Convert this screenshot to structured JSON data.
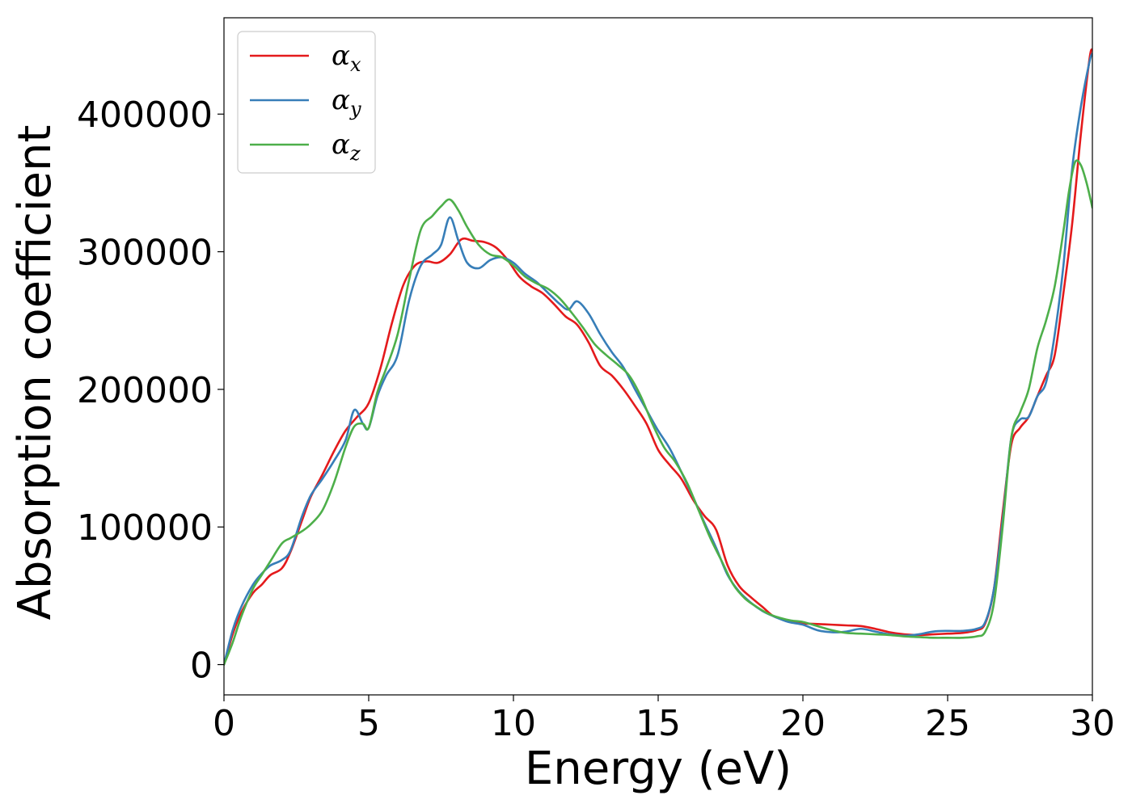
{
  "chart_data": {
    "type": "line",
    "title": "",
    "xlabel": "Energy (eV)",
    "ylabel": "Absorption coefficient",
    "xlim": [
      0,
      30
    ],
    "ylim": [
      -22000,
      470000
    ],
    "xticks": [
      0,
      5,
      10,
      15,
      20,
      25,
      30
    ],
    "yticks": [
      0,
      100000,
      200000,
      300000,
      400000
    ],
    "xtick_labels": [
      "0",
      "5",
      "10",
      "15",
      "20",
      "25",
      "30"
    ],
    "ytick_labels": [
      "0",
      "100000",
      "200000",
      "300000",
      "400000"
    ],
    "grid": false,
    "legend_position": "top-left",
    "series": [
      {
        "name": "α_x",
        "label_base": "α",
        "label_sub": "x",
        "color": "#e41a1c",
        "x": [
          0,
          0.3,
          0.6,
          1.0,
          1.3,
          1.6,
          2.0,
          2.3,
          2.7,
          3.0,
          3.4,
          3.8,
          4.2,
          4.6,
          5.0,
          5.4,
          5.8,
          6.2,
          6.6,
          7.0,
          7.4,
          7.8,
          8.2,
          8.6,
          9.0,
          9.4,
          9.8,
          10.2,
          10.6,
          11.0,
          11.4,
          11.8,
          12.2,
          12.6,
          13.0,
          13.4,
          13.8,
          14.2,
          14.6,
          15.0,
          15.4,
          15.8,
          16.2,
          16.6,
          17.0,
          17.4,
          17.8,
          18.2,
          18.6,
          19.0,
          19.5,
          20.0,
          20.5,
          21.0,
          21.5,
          22.0,
          22.5,
          23.0,
          23.5,
          24.0,
          24.5,
          25.0,
          25.5,
          26.0,
          26.3,
          26.6,
          26.9,
          27.2,
          27.5,
          27.8,
          28.1,
          28.4,
          28.7,
          29.0,
          29.3,
          29.6,
          29.9,
          30.0
        ],
        "y": [
          0,
          22000,
          38000,
          52000,
          58000,
          65000,
          70000,
          82000,
          105000,
          122000,
          138000,
          155000,
          170000,
          180000,
          190000,
          215000,
          248000,
          276000,
          290000,
          293000,
          292000,
          298000,
          309000,
          308000,
          307000,
          303000,
          294000,
          282000,
          275000,
          270000,
          262000,
          253000,
          247000,
          234000,
          217000,
          210000,
          200000,
          188000,
          175000,
          156000,
          145000,
          135000,
          120000,
          108000,
          98000,
          72000,
          57000,
          49000,
          42000,
          35000,
          32000,
          30000,
          29500,
          29000,
          28500,
          28000,
          26000,
          23500,
          22000,
          21500,
          22000,
          22500,
          23000,
          25000,
          30000,
          55000,
          110000,
          160000,
          172000,
          180000,
          195000,
          210000,
          225000,
          270000,
          320000,
          385000,
          440000,
          447000
        ]
      },
      {
        "name": "α_y",
        "label_base": "α",
        "label_sub": "y",
        "color": "#377eb8",
        "x": [
          0,
          0.3,
          0.6,
          1.0,
          1.3,
          1.6,
          2.0,
          2.3,
          2.7,
          3.0,
          3.4,
          3.8,
          4.2,
          4.5,
          4.8,
          5.0,
          5.3,
          5.6,
          6.0,
          6.4,
          6.8,
          7.2,
          7.5,
          7.8,
          8.1,
          8.4,
          8.8,
          9.2,
          9.6,
          10.0,
          10.4,
          10.8,
          11.2,
          11.6,
          11.9,
          12.2,
          12.6,
          13.0,
          13.4,
          13.8,
          14.2,
          14.6,
          15.0,
          15.4,
          15.8,
          16.2,
          16.6,
          17.0,
          17.4,
          17.8,
          18.2,
          18.6,
          19.0,
          19.5,
          20.0,
          20.5,
          21.0,
          21.5,
          22.0,
          22.5,
          23.0,
          23.5,
          24.0,
          24.5,
          25.0,
          25.5,
          26.0,
          26.3,
          26.6,
          26.9,
          27.2,
          27.5,
          27.8,
          28.1,
          28.4,
          28.7,
          29.0,
          29.3,
          29.6,
          29.9,
          30.0
        ],
        "y": [
          0,
          25000,
          42000,
          58000,
          66000,
          72000,
          76000,
          83000,
          108000,
          123000,
          135000,
          148000,
          163000,
          185000,
          175000,
          172000,
          195000,
          210000,
          225000,
          265000,
          290000,
          298000,
          305000,
          325000,
          308000,
          292000,
          288000,
          294000,
          296000,
          292000,
          284000,
          278000,
          270000,
          262000,
          258000,
          264000,
          255000,
          240000,
          227000,
          216000,
          200000,
          185000,
          170000,
          157000,
          140000,
          122000,
          103000,
          85000,
          65000,
          53000,
          45000,
          39000,
          35000,
          31000,
          29000,
          25000,
          23500,
          24000,
          26000,
          24000,
          22000,
          21000,
          22000,
          24000,
          24500,
          24500,
          26000,
          31000,
          55000,
          105000,
          165000,
          178000,
          180000,
          195000,
          205000,
          240000,
          290000,
          360000,
          405000,
          438000,
          444000
        ]
      },
      {
        "name": "α_z",
        "label_base": "α",
        "label_sub": "z",
        "color": "#4daf4a",
        "x": [
          0,
          0.3,
          0.6,
          1.0,
          1.3,
          1.6,
          2.0,
          2.3,
          2.7,
          3.0,
          3.4,
          3.8,
          4.2,
          4.5,
          4.8,
          5.0,
          5.3,
          5.6,
          6.0,
          6.4,
          6.8,
          7.2,
          7.5,
          7.8,
          8.1,
          8.4,
          8.8,
          9.2,
          9.6,
          10.0,
          10.4,
          10.8,
          11.2,
          11.6,
          12.0,
          12.4,
          12.8,
          13.2,
          13.6,
          14.0,
          14.4,
          14.8,
          15.2,
          15.6,
          16.0,
          16.4,
          16.8,
          17.2,
          17.6,
          18.0,
          18.4,
          18.8,
          19.2,
          19.6,
          20.0,
          20.5,
          21.0,
          21.5,
          22.0,
          22.5,
          23.0,
          23.5,
          24.0,
          24.5,
          25.0,
          25.5,
          26.0,
          26.3,
          26.6,
          26.9,
          27.2,
          27.5,
          27.8,
          28.1,
          28.4,
          28.7,
          29.0,
          29.2,
          29.4,
          29.6,
          29.8,
          30.0
        ],
        "y": [
          0,
          16000,
          35000,
          55000,
          65000,
          75000,
          88000,
          92000,
          97000,
          102000,
          112000,
          132000,
          158000,
          173000,
          175000,
          172000,
          198000,
          215000,
          240000,
          280000,
          316000,
          326000,
          333000,
          338000,
          330000,
          318000,
          305000,
          298000,
          296000,
          290000,
          282000,
          277000,
          273000,
          266000,
          256000,
          245000,
          233000,
          225000,
          218000,
          210000,
          195000,
          175000,
          158000,
          147000,
          132000,
          112000,
          92000,
          75000,
          58000,
          48000,
          42000,
          37000,
          34000,
          32000,
          31000,
          28000,
          25000,
          23000,
          22500,
          22000,
          21500,
          20500,
          20000,
          19500,
          19500,
          19500,
          20500,
          24000,
          45000,
          100000,
          165000,
          183000,
          200000,
          230000,
          250000,
          275000,
          315000,
          345000,
          365000,
          363000,
          350000,
          332000
        ]
      }
    ]
  }
}
